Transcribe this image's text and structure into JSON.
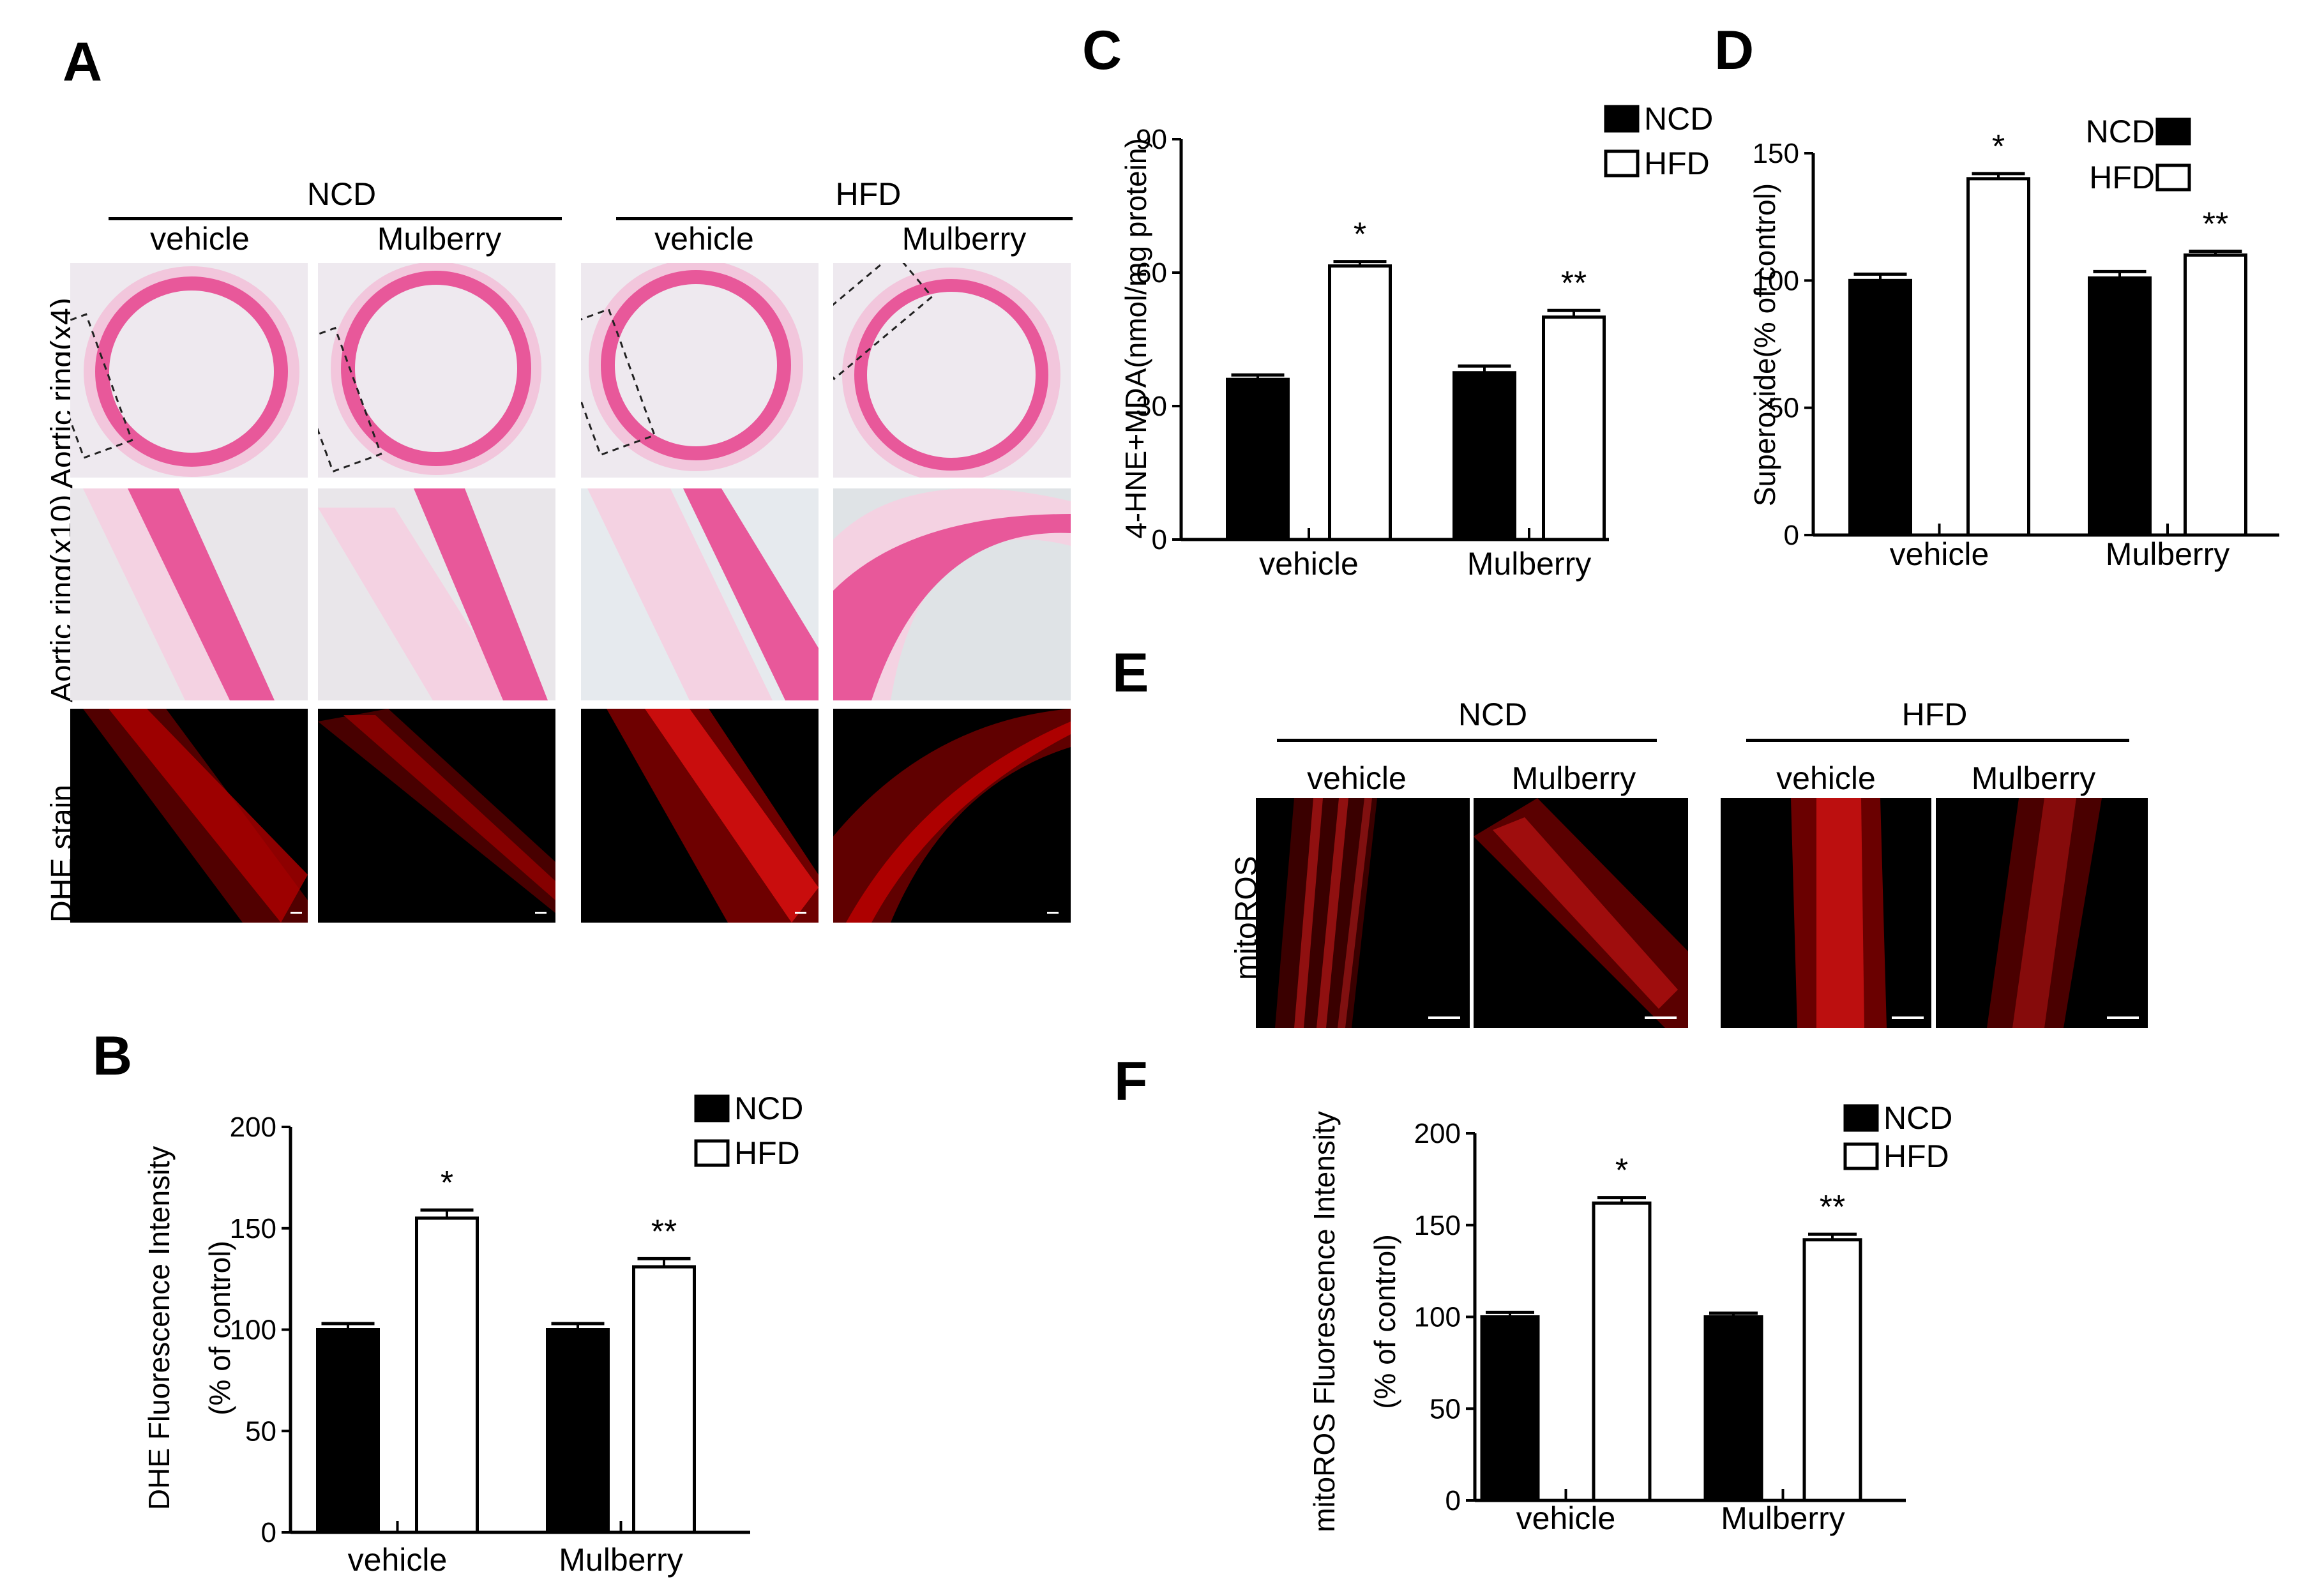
{
  "panels": {
    "A": "A",
    "B": "B",
    "C": "C",
    "D": "D",
    "E": "E",
    "F": "F"
  },
  "panel_a": {
    "group_labels": [
      "NCD",
      "HFD"
    ],
    "treatment_labels": [
      "vehicle",
      "Mulberry",
      "vehicle",
      "Mulberry"
    ],
    "row_labels": [
      "Aortic ring(x4)",
      "Aortic ring(x10)",
      "DHE stain"
    ]
  },
  "panel_e": {
    "group_labels": [
      "NCD",
      "HFD"
    ],
    "treatment_labels": [
      "vehicle",
      "Mulberry",
      "vehicle",
      "Mulberry"
    ],
    "row_label": "mitoROS"
  },
  "colors": {
    "ncd": "#000000",
    "hfd": "#ffffff",
    "he_stain": "#e8589a",
    "fluor": "#ff2020"
  },
  "chart_data": [
    {
      "id": "B",
      "type": "bar",
      "categories": [
        "vehicle",
        "Mulberry"
      ],
      "series": [
        {
          "name": "NCD",
          "values": [
            100,
            100
          ],
          "errors": [
            3,
            3
          ]
        },
        {
          "name": "HFD",
          "values": [
            155,
            131
          ],
          "errors": [
            4,
            4
          ]
        }
      ],
      "significance": [
        [
          "",
          "*"
        ],
        [
          "",
          "**"
        ]
      ],
      "ylabel_lines": [
        "DHE Fluorescence  Intensity",
        "(% of control)"
      ],
      "yticks": [
        "0",
        "50",
        "100",
        "150",
        "200"
      ],
      "ylim": [
        0,
        200
      ],
      "legend": "top-right"
    },
    {
      "id": "C",
      "type": "bar",
      "categories": [
        "vehicle",
        "Mulberry"
      ],
      "series": [
        {
          "name": "NCD",
          "values": [
            36,
            37.5
          ],
          "errors": [
            1,
            1.5
          ]
        },
        {
          "name": "HFD",
          "values": [
            61.5,
            50
          ],
          "errors": [
            1,
            1.5
          ]
        }
      ],
      "significance": [
        [
          "",
          "*"
        ],
        [
          "",
          "**"
        ]
      ],
      "ylabel_lines": [
        "4-HNE+MDA(nmol/mg protein)"
      ],
      "yticks": [
        "0",
        "30",
        "60",
        "90"
      ],
      "ylim": [
        0,
        90
      ],
      "legend": "top-right"
    },
    {
      "id": "D",
      "type": "bar",
      "categories": [
        "vehicle",
        "Mulberry"
      ],
      "series": [
        {
          "name": "NCD",
          "values": [
            100,
            101
          ],
          "errors": [
            2.5,
            2.5
          ]
        },
        {
          "name": "HFD",
          "values": [
            140,
            110
          ],
          "errors": [
            2,
            1.5
          ]
        }
      ],
      "significance": [
        [
          "",
          "*"
        ],
        [
          "",
          "**"
        ]
      ],
      "ylabel_lines": [
        "Superoxide(% of control)"
      ],
      "yticks": [
        "0",
        "50",
        "100",
        "150"
      ],
      "ylim": [
        0,
        150
      ],
      "legend": "top-right"
    },
    {
      "id": "F",
      "type": "bar",
      "categories": [
        "vehicle",
        "Mulberry"
      ],
      "series": [
        {
          "name": "NCD",
          "values": [
            100,
            100
          ],
          "errors": [
            2.5,
            2
          ]
        },
        {
          "name": "HFD",
          "values": [
            162,
            142
          ],
          "errors": [
            3,
            3
          ]
        }
      ],
      "significance": [
        [
          "",
          "*"
        ],
        [
          "",
          "**"
        ]
      ],
      "ylabel_lines": [
        "mitoROS Fluorescence  Intensity",
        "(% of control)"
      ],
      "yticks": [
        "0",
        "50",
        "100",
        "150",
        "200"
      ],
      "ylim": [
        0,
        200
      ],
      "legend": "top-right"
    }
  ]
}
